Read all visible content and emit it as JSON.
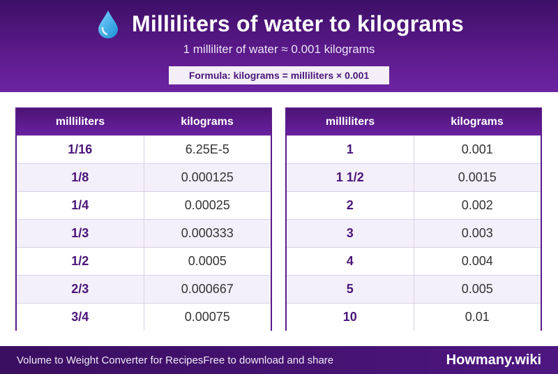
{
  "header": {
    "icon": "water-drop-icon",
    "title": "Milliliters of water to kilograms",
    "subtitle": "1 milliliter of water ≈ 0.001 kilograms",
    "formula": "Formula: kilograms = milliliters × 0.001"
  },
  "tables": {
    "left": {
      "col_ml": "milliliters",
      "col_kg": "kilograms",
      "rows": [
        {
          "ml": "1/16",
          "kg": "6.25E-5"
        },
        {
          "ml": "1/8",
          "kg": "0.000125"
        },
        {
          "ml": "1/4",
          "kg": "0.00025"
        },
        {
          "ml": "1/3",
          "kg": "0.000333"
        },
        {
          "ml": "1/2",
          "kg": "0.0005"
        },
        {
          "ml": "2/3",
          "kg": "0.000667"
        },
        {
          "ml": "3/4",
          "kg": "0.00075"
        }
      ]
    },
    "right": {
      "col_ml": "milliliters",
      "col_kg": "kilograms",
      "rows": [
        {
          "ml": "1",
          "kg": "0.001"
        },
        {
          "ml": "1 1/2",
          "kg": "0.0015"
        },
        {
          "ml": "2",
          "kg": "0.002"
        },
        {
          "ml": "3",
          "kg": "0.003"
        },
        {
          "ml": "4",
          "kg": "0.004"
        },
        {
          "ml": "5",
          "kg": "0.005"
        },
        {
          "ml": "10",
          "kg": "0.01"
        }
      ]
    }
  },
  "footer": {
    "left_a": "Volume to Weight Converter for Recipes",
    "left_b": "Free to download and share",
    "brand": "Howmany.wiki"
  },
  "colors": {
    "primary": "#5b1a8a",
    "dark": "#3d0f66",
    "row_alt": "#f4f0fb",
    "drop": "#29a8e8"
  }
}
